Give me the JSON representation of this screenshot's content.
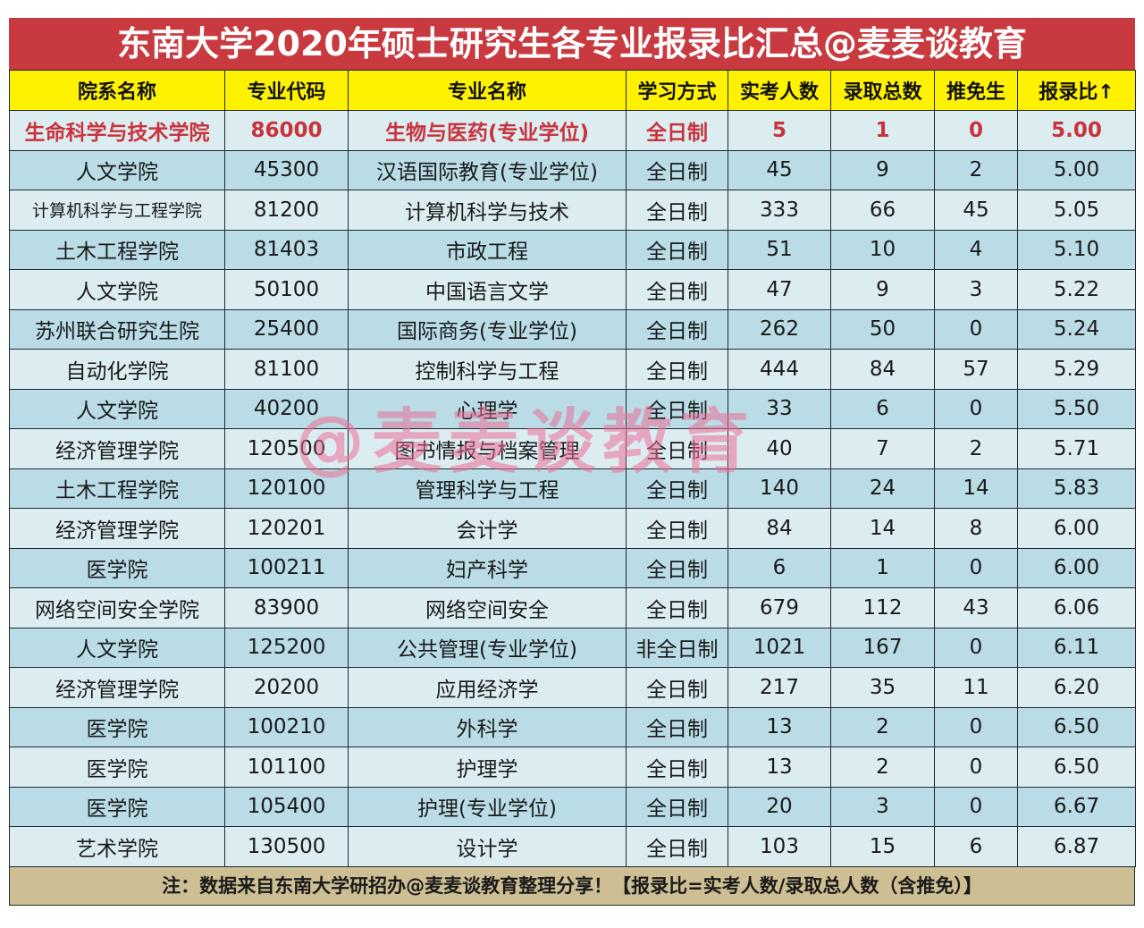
{
  "title": "东南大学2020年硕士研究生各专业报录比汇总@麦麦谈教育",
  "colors": {
    "title_bg": "#c83a40",
    "header_bg": "#fff200",
    "row_odd": "#b9dce6",
    "row_even": "#dcedf2",
    "highlight_text": "#c8333c",
    "footer_bg": "#cdbf93",
    "watermark": "#ec6e96"
  },
  "table": {
    "headers": [
      "院系名称",
      "专业代码",
      "专业名称",
      "学习方式",
      "实考人数",
      "录取总数",
      "推免生",
      "报录比↑"
    ],
    "rows": [
      [
        "生命科学与技术学院",
        "86000",
        "生物与医药(专业学位)",
        "全日制",
        "5",
        "1",
        "0",
        "5.00"
      ],
      [
        "人文学院",
        "45300",
        "汉语国际教育(专业学位)",
        "全日制",
        "45",
        "9",
        "2",
        "5.00"
      ],
      [
        "计算机科学与工程学院",
        "81200",
        "计算机科学与技术",
        "全日制",
        "333",
        "66",
        "45",
        "5.05"
      ],
      [
        "土木工程学院",
        "81403",
        "市政工程",
        "全日制",
        "51",
        "10",
        "4",
        "5.10"
      ],
      [
        "人文学院",
        "50100",
        "中国语言文学",
        "全日制",
        "47",
        "9",
        "3",
        "5.22"
      ],
      [
        "苏州联合研究生院",
        "25400",
        "国际商务(专业学位)",
        "全日制",
        "262",
        "50",
        "0",
        "5.24"
      ],
      [
        "自动化学院",
        "81100",
        "控制科学与工程",
        "全日制",
        "444",
        "84",
        "57",
        "5.29"
      ],
      [
        "人文学院",
        "40200",
        "心理学",
        "全日制",
        "33",
        "6",
        "0",
        "5.50"
      ],
      [
        "经济管理学院",
        "120500",
        "图书情报与档案管理",
        "全日制",
        "40",
        "7",
        "2",
        "5.71"
      ],
      [
        "土木工程学院",
        "120100",
        "管理科学与工程",
        "全日制",
        "140",
        "24",
        "14",
        "5.83"
      ],
      [
        "经济管理学院",
        "120201",
        "会计学",
        "全日制",
        "84",
        "14",
        "8",
        "6.00"
      ],
      [
        "医学院",
        "100211",
        "妇产科学",
        "全日制",
        "6",
        "1",
        "0",
        "6.00"
      ],
      [
        "网络空间安全学院",
        "83900",
        "网络空间安全",
        "全日制",
        "679",
        "112",
        "43",
        "6.06"
      ],
      [
        "人文学院",
        "125200",
        "公共管理(专业学位)",
        "非全日制",
        "1021",
        "167",
        "0",
        "6.11"
      ],
      [
        "经济管理学院",
        "20200",
        "应用经济学",
        "全日制",
        "217",
        "35",
        "11",
        "6.20"
      ],
      [
        "医学院",
        "100210",
        "外科学",
        "全日制",
        "13",
        "2",
        "0",
        "6.50"
      ],
      [
        "医学院",
        "101100",
        "护理学",
        "全日制",
        "13",
        "2",
        "0",
        "6.50"
      ],
      [
        "医学院",
        "105400",
        "护理(专业学位)",
        "全日制",
        "20",
        "3",
        "0",
        "6.67"
      ],
      [
        "艺术学院",
        "130500",
        "设计学",
        "全日制",
        "103",
        "15",
        "6",
        "6.87"
      ]
    ]
  },
  "footer": "注：数据来自东南大学研招办@麦麦谈教育整理分享！【报录比=实考人数/录取总人数（含推免）】",
  "watermark": "@麦麦谈教育"
}
